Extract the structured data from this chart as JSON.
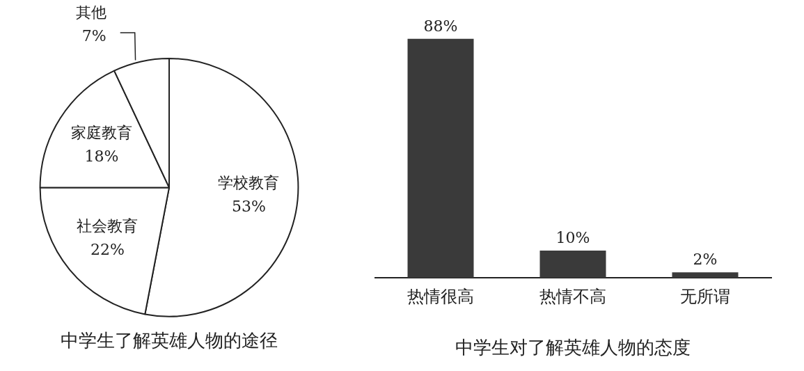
{
  "chart_data": [
    {
      "type": "pie",
      "title": "中学生了解英雄人物的途径",
      "categories": [
        "学校教育",
        "社会教育",
        "家庭教育",
        "其他"
      ],
      "values": [
        53,
        22,
        18,
        7
      ],
      "value_labels": [
        "53%",
        "22%",
        "18%",
        "7%"
      ],
      "colors": [
        "#ffffff",
        "#ffffff",
        "#ffffff",
        "#ffffff"
      ],
      "legend": false
    },
    {
      "type": "bar",
      "title": "中学生对了解英雄人物的态度",
      "categories": [
        "热情很高",
        "热情不高",
        "无所谓"
      ],
      "values": [
        88,
        10,
        2
      ],
      "value_labels": [
        "88%",
        "10%",
        "2%"
      ],
      "color": "#3a3a3a",
      "legend": false,
      "grid": false
    }
  ]
}
